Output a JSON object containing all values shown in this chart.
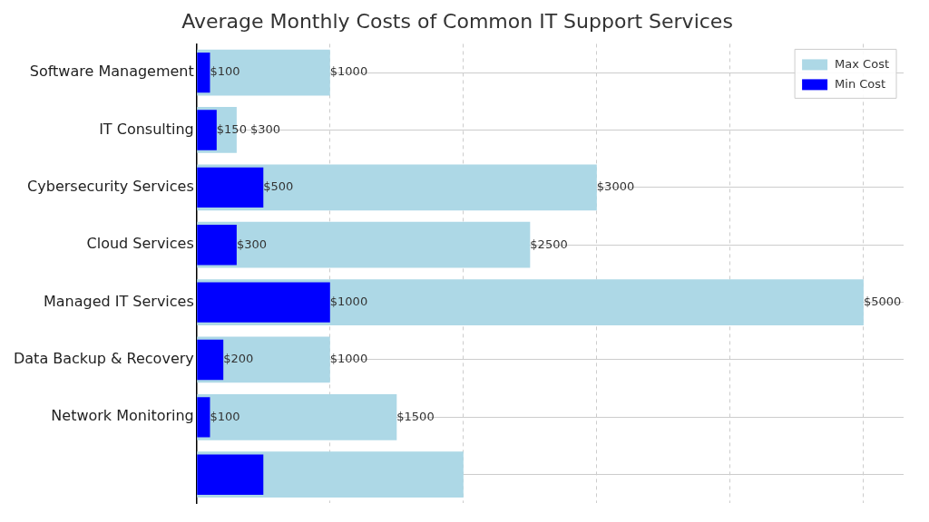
{
  "chart_data": {
    "type": "bar",
    "orientation": "horizontal",
    "title": "Average Monthly Costs of Common IT Support Services",
    "categories": [
      "Software Management",
      "IT Consulting",
      "Cybersecurity Services",
      "Cloud Services",
      "Managed IT Services",
      "Data Backup & Recovery",
      "Network Monitoring",
      null
    ],
    "series": [
      {
        "name": "Max Cost",
        "color": "#add8e6",
        "values": [
          1000,
          300,
          3000,
          2500,
          5000,
          1000,
          1500,
          2000
        ],
        "value_labels": [
          "$1000",
          "$300",
          "$3000",
          "$2500",
          "$5000",
          "$1000",
          "$1500",
          null
        ]
      },
      {
        "name": "Min Cost",
        "color": "#0000ff",
        "values": [
          100,
          150,
          500,
          300,
          1000,
          200,
          100,
          500
        ],
        "value_labels": [
          "$100",
          "$150",
          "$500",
          "$300",
          "$1000",
          "$200",
          "$100",
          null
        ]
      }
    ],
    "xlim": [
      0,
      5300
    ],
    "xticks": [
      {
        "value": 0,
        "label": null
      },
      {
        "value": 1000,
        "label": null
      },
      {
        "value": 2000,
        "label": null
      },
      {
        "value": 3000,
        "label": null
      },
      {
        "value": 4000,
        "label": null
      },
      {
        "value": 5000,
        "label": null
      }
    ],
    "tick_labels": "y",
    "grid": true,
    "legend": "top right"
  }
}
